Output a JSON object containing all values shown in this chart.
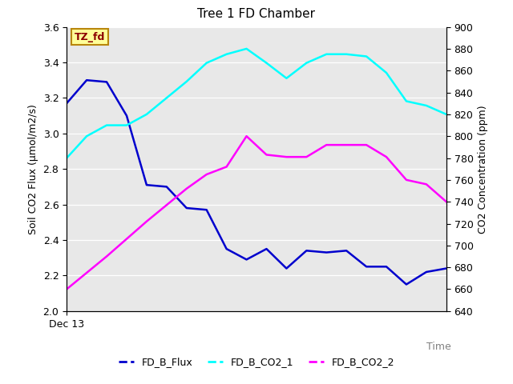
{
  "title": "Tree 1 FD Chamber",
  "xlabel": "Time",
  "ylabel_left": "Soil CO2 Flux (μmol/m2/s)",
  "ylabel_right": "CO2 Concentration (ppm)",
  "ylim_left": [
    2.0,
    3.6
  ],
  "ylim_right": [
    640,
    900
  ],
  "x_tick_label": "Dec 13",
  "annotation_text": "TZ_fd",
  "annotation_color": "#8B0000",
  "annotation_bg": "#FFFF99",
  "annotation_border": "#B8860B",
  "plot_bg": "#E8E8E8",
  "fig_bg": "#FFFFFF",
  "flux_color": "#0000CD",
  "co2_1_color": "#00FFFF",
  "co2_2_color": "#FF00FF",
  "flux_label": "FD_B_Flux",
  "co2_1_label": "FD_B_CO2_1",
  "co2_2_label": "FD_B_CO2_2",
  "n_points": 20,
  "flux_y": [
    3.17,
    3.3,
    3.29,
    3.1,
    2.71,
    2.7,
    2.58,
    2.57,
    2.35,
    2.29,
    2.35,
    2.24,
    2.34,
    2.33,
    2.34,
    2.25,
    2.25,
    2.15,
    2.22,
    2.24
  ],
  "co2_1_y": [
    780,
    800,
    810,
    810,
    820,
    835,
    850,
    867,
    875,
    880,
    867,
    853,
    867,
    875,
    875,
    873,
    858,
    832,
    828,
    820
  ],
  "co2_2_y": [
    660,
    675,
    690,
    706,
    722,
    737,
    752,
    765,
    772,
    800,
    783,
    781,
    781,
    792,
    792,
    792,
    781,
    760,
    756,
    740
  ]
}
